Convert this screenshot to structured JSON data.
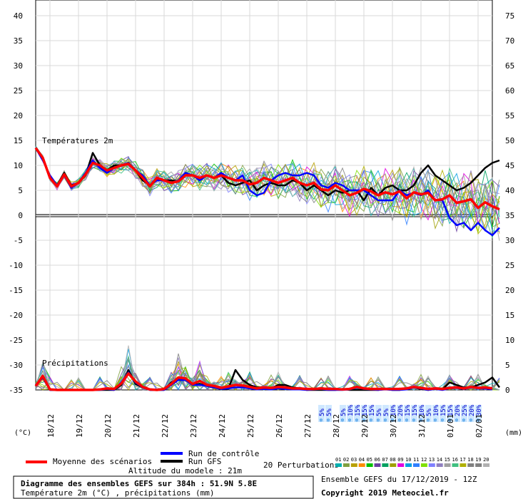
{
  "chart_data": {
    "type": "line",
    "title": "Diagramme des ensembles GEFS sur 384h : 51.9N 5.8E",
    "subtitle": "Température 2m (°C) , précipitations (mm)",
    "unit_left": "(°C)",
    "unit_right": "(mm)",
    "altitude": "Altitude du modele : 21m",
    "run_label": "Ensemble GEFS du 17/12/2019 - 12Z",
    "copyright": "Copyright 2019 Meteociel.fr",
    "temp_section_label": "Températures 2m",
    "precip_section_label": "Précipitations",
    "left_axis": {
      "ticks": [
        40,
        35,
        30,
        25,
        20,
        15,
        10,
        5,
        0,
        -5,
        -10,
        -15,
        -20,
        -25,
        -30,
        -35
      ],
      "range": [
        -35,
        40
      ]
    },
    "right_axis": {
      "ticks": [
        75,
        70,
        65,
        60,
        55,
        50,
        45,
        40,
        35,
        30,
        25,
        20,
        15,
        10,
        5,
        0
      ]
    },
    "x_dates": [
      "18/12",
      "19/12",
      "20/12",
      "21/12",
      "22/12",
      "23/12",
      "24/12",
      "25/12",
      "26/12",
      "27/12",
      "28/12",
      "29/12",
      "30/12",
      "31/12",
      "01/01",
      "02/01"
    ],
    "x_range_hours": [
      0,
      384
    ],
    "snow_probabilities": [
      {
        "hour": 240,
        "label": "5%"
      },
      {
        "hour": 246,
        "label": "5%"
      },
      {
        "hour": 258,
        "label": "5%"
      },
      {
        "hour": 264,
        "label": "10%"
      },
      {
        "hour": 270,
        "label": "15%"
      },
      {
        "hour": 276,
        "label": "15%"
      },
      {
        "hour": 282,
        "label": "15%"
      },
      {
        "hour": 288,
        "label": "5%"
      },
      {
        "hour": 294,
        "label": "5%"
      },
      {
        "hour": 300,
        "label": "10%"
      },
      {
        "hour": 306,
        "label": "20%"
      },
      {
        "hour": 312,
        "label": "15%"
      },
      {
        "hour": 318,
        "label": "15%"
      },
      {
        "hour": 324,
        "label": "10%"
      },
      {
        "hour": 330,
        "label": "5%"
      },
      {
        "hour": 336,
        "label": "10%"
      },
      {
        "hour": 342,
        "label": "15%"
      },
      {
        "hour": 348,
        "label": "15%"
      },
      {
        "hour": 354,
        "label": "20%"
      },
      {
        "hour": 360,
        "label": "25%"
      },
      {
        "hour": 366,
        "label": "20%"
      },
      {
        "hour": 372,
        "label": "30%"
      }
    ],
    "legend": {
      "mean": "Moyenne des scénarios",
      "control": "Run de contrôle",
      "gfs": "Run GFS",
      "perturbations": "20 Perturbations",
      "perturbation_numbers": [
        "01",
        "02",
        "03",
        "04",
        "05",
        "06",
        "07",
        "08",
        "09",
        "10",
        "11",
        "12",
        "13",
        "14",
        "15",
        "16",
        "17",
        "18",
        "19",
        "20"
      ]
    },
    "colors": {
      "mean": "#ff0000",
      "control": "#0000ff",
      "gfs": "#000000",
      "perturbations": [
        "#00b0b0",
        "#7fa040",
        "#b8a000",
        "#ff8c00",
        "#00c000",
        "#6a3fa0",
        "#00a060",
        "#a0a000",
        "#e000e0",
        "#00a0e0",
        "#3080ff",
        "#80e000",
        "#8080ff",
        "#9080c0",
        "#a0a0a0",
        "#40c080",
        "#b0b000",
        "#808080",
        "#808080",
        "#b0b0b0"
      ]
    },
    "series": [
      {
        "name": "Moyenne des scénarios",
        "temps": [
          13.5,
          11.5,
          7.5,
          5.8,
          8.2,
          5.8,
          6.5,
          8.2,
          10.5,
          10,
          9,
          9.5,
          10,
          10.3,
          9,
          7.5,
          5.8,
          7.5,
          7,
          6.5,
          6.8,
          8,
          8,
          7.5,
          8,
          7.5,
          8,
          7.5,
          7,
          7,
          6.2,
          6.5,
          7.5,
          7,
          6.5,
          7,
          7.5,
          6.5,
          6,
          6.5,
          5.2,
          5,
          6,
          5,
          4,
          4.5,
          5.3,
          4.8,
          4,
          4.6,
          4.2,
          4.8,
          3.4,
          4.6,
          4.2,
          4.5,
          3,
          3.2,
          4,
          2.5,
          2.8,
          3.2,
          1.5,
          2.6,
          1.8,
          1.2
        ],
        "precip": [
          0.8,
          2.8,
          0.1,
          0,
          0,
          0,
          0,
          0,
          0,
          0.1,
          0.3,
          0.2,
          1.3,
          3.3,
          1.7,
          0.6,
          0.1,
          0,
          0.2,
          1.2,
          2.5,
          2.3,
          1.2,
          1.8,
          1,
          0.8,
          0.4,
          0.7,
          1,
          0.9,
          0.6,
          0.3,
          0.5,
          0.4,
          0.6,
          0.5,
          0.3,
          0.3,
          0.2,
          0.2,
          0.3,
          0.2,
          0.2,
          0.1,
          0.2,
          0.6,
          0.3,
          0.2,
          0.2,
          0.2,
          0.2,
          0.2,
          0.3,
          0.6,
          0.4,
          0.2,
          0.3,
          0.2,
          0.4,
          0.5,
          0.3,
          0.6,
          0.4,
          0.5,
          0.3
        ]
      },
      {
        "name": "Run de contrôle",
        "temps": [
          13.5,
          11,
          8,
          6,
          8,
          5.5,
          6.5,
          8.5,
          11,
          9.5,
          8.5,
          9.5,
          10,
          10.5,
          9,
          8,
          6,
          7,
          7,
          6.5,
          7,
          8.5,
          8,
          7,
          8,
          7.5,
          8.5,
          7.5,
          7,
          8,
          5,
          4,
          4.5,
          7,
          8,
          8.5,
          8,
          8,
          8.5,
          8,
          6,
          5.5,
          6.5,
          6,
          5,
          5,
          5,
          4,
          3,
          3,
          3,
          5,
          4,
          4.5,
          4,
          5,
          3,
          3,
          -0.5,
          -2,
          -1.5,
          -3,
          -1.5,
          -3,
          -4,
          -2.5
        ],
        "precip": [
          1,
          2.5,
          0,
          0,
          0,
          0,
          0,
          0,
          0,
          0,
          0.2,
          0,
          1.5,
          3.5,
          1.5,
          0.5,
          0,
          0,
          0,
          1,
          2,
          2,
          1,
          1,
          0.8,
          0.5,
          0.2,
          0.3,
          0.5,
          0.5,
          0.3,
          0.1,
          0.2,
          0.1,
          0.3,
          0.2,
          0.1,
          0.1,
          0,
          0.1,
          0.2,
          0,
          0,
          0,
          0.1,
          0.5,
          0.2,
          0.1,
          0,
          0.1,
          0,
          0,
          0.1,
          0.5,
          0.3,
          0,
          0.2,
          0,
          0.3,
          0.4,
          0.2,
          0.5,
          0.3,
          0.3,
          0.1
        ]
      },
      {
        "name": "Run GFS",
        "temps": [
          13.5,
          11.5,
          7.5,
          6,
          8.5,
          6,
          6.5,
          8,
          12.5,
          10,
          9,
          10,
          10,
          10.5,
          9,
          7,
          6,
          7.5,
          7,
          7,
          6.8,
          8.5,
          8,
          7.5,
          8,
          7.5,
          8,
          6.5,
          6,
          6.5,
          7,
          5,
          6,
          6.5,
          6,
          6,
          7,
          6.5,
          5,
          6,
          5,
          4,
          5,
          4.5,
          5,
          5,
          3,
          5.5,
          4,
          5.5,
          6,
          5,
          5,
          6,
          8.5,
          10,
          8,
          7,
          6,
          5,
          5.5,
          6.5,
          8,
          9.5,
          10.5,
          11
        ],
        "precip": [
          0.8,
          2.5,
          0,
          0,
          0,
          0,
          0,
          0,
          0,
          0,
          0,
          0,
          1,
          4,
          1.2,
          0.5,
          0,
          0,
          0,
          1.5,
          2,
          2,
          1,
          1.2,
          0.8,
          0.5,
          0.2,
          0.2,
          4,
          2,
          1,
          0.5,
          0.5,
          0.3,
          1,
          1,
          0.5,
          0.3,
          0,
          0,
          0,
          0,
          0,
          0.2,
          0,
          0,
          0,
          0,
          0,
          0.2,
          0,
          0,
          0.3,
          0.5,
          0.2,
          0,
          0.2,
          0.1,
          1.5,
          1,
          0.5,
          0.5,
          1,
          1.5,
          2.5,
          0.5
        ]
      }
    ]
  }
}
